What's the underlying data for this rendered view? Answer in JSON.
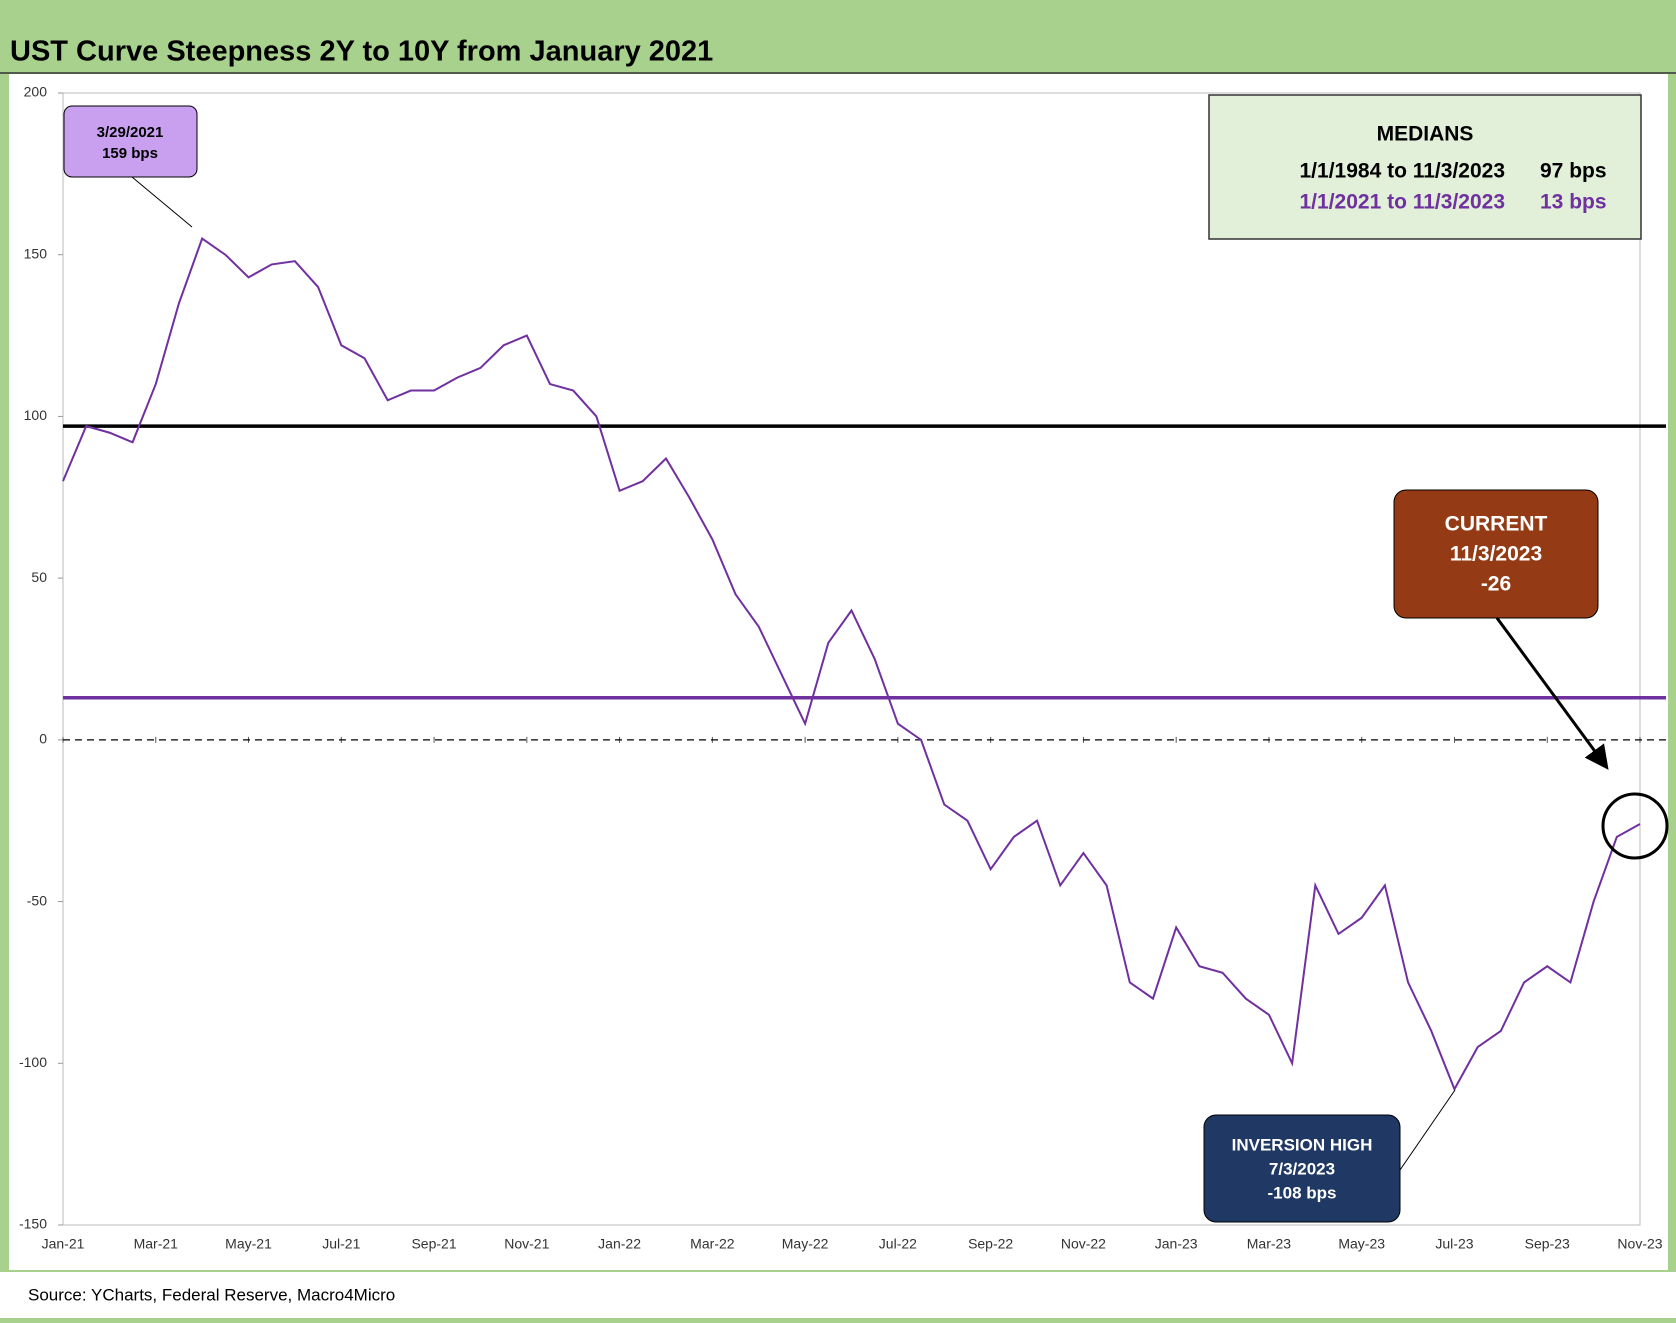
{
  "chart_data": {
    "type": "line",
    "title": "UST Curve Steepness 2Y to 10Y from January 2021",
    "source": "Source: YCharts, Federal Reserve, Macro4Micro",
    "categories": [
      "Jan-21",
      null,
      null,
      null,
      "Mar-21",
      null,
      null,
      null,
      "May-21",
      null,
      null,
      null,
      "Jul-21",
      null,
      null,
      null,
      "Sep-21",
      null,
      null,
      null,
      "Nov-21",
      null,
      null,
      null,
      "Jan-22",
      null,
      null,
      null,
      "Mar-22",
      null,
      null,
      null,
      "May-22",
      null,
      null,
      null,
      "Jul-22",
      null,
      null,
      null,
      "Sep-22",
      null,
      null,
      null,
      "Nov-22",
      null,
      null,
      null,
      "Jan-23",
      null,
      null,
      null,
      "Mar-23",
      null,
      null,
      null,
      "May-23",
      null,
      null,
      null,
      "Jul-23",
      null,
      null,
      null,
      "Sep-23",
      null,
      null,
      null,
      "Nov-23"
    ],
    "series": [
      {
        "color": "#7030a0",
        "values": [
          80,
          97,
          95,
          92,
          110,
          135,
          155,
          150,
          143,
          147,
          148,
          140,
          122,
          118,
          105,
          108,
          108,
          112,
          115,
          122,
          125,
          110,
          108,
          100,
          77,
          80,
          87,
          75,
          62,
          45,
          35,
          20,
          5,
          30,
          40,
          25,
          5,
          0,
          -20,
          -25,
          -40,
          -30,
          -25,
          -45,
          -35,
          -45,
          -75,
          -80,
          -58,
          -70,
          -72,
          -80,
          -85,
          -100,
          -45,
          -60,
          -55,
          -45,
          -75,
          -90,
          -108,
          -95,
          -90,
          -75,
          -70,
          -75,
          -50,
          -30,
          -26
        ]
      }
    ],
    "ylim": [
      -150,
      200
    ],
    "yticks": [
      -150,
      -100,
      -50,
      0,
      50,
      100,
      150,
      200
    ],
    "reference_lines": [
      {
        "value": 97,
        "color": "#000000"
      },
      {
        "value": 13,
        "color": "#7030a0"
      }
    ],
    "zero_line": {
      "value": 0,
      "dashed": true
    },
    "annotations": {
      "peak": {
        "date": "3/29/2021",
        "text": "159 bps"
      },
      "medians": {
        "title": "MEDIANS",
        "rows": [
          [
            "1/1/1984 to 11/3/2023",
            "97 bps"
          ],
          [
            "1/1/2021 to 11/3/2023",
            "13 bps"
          ]
        ]
      },
      "current": {
        "title": "CURRENT",
        "date": "11/3/2023",
        "value": "-26"
      },
      "inversion": {
        "title": "INVERSION HIGH",
        "date": "7/3/2023",
        "value": "-108 bps"
      }
    }
  }
}
